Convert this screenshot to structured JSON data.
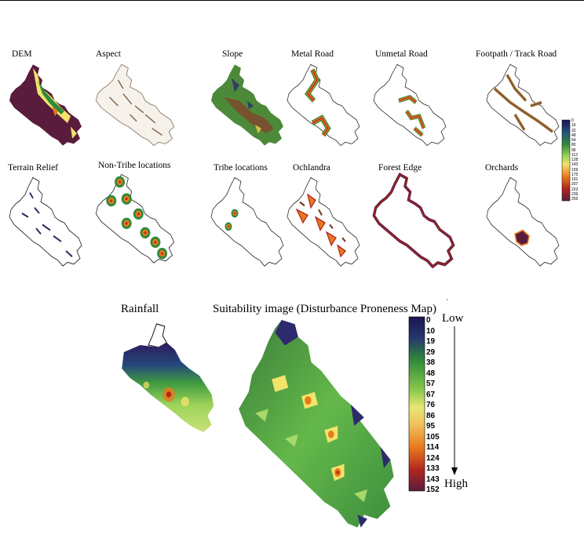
{
  "panels": [
    {
      "label": "DEM"
    },
    {
      "label": "Aspect"
    },
    {
      "label": "Slope"
    },
    {
      "label": "Metal Road"
    },
    {
      "label": "Unmetal Road"
    },
    {
      "label": "Footpath / Track Road"
    },
    {
      "label": "Terrain Relief"
    },
    {
      "label": "Non-Tribe locations"
    },
    {
      "label": "Tribe locations"
    },
    {
      "label": "Ochlandra"
    },
    {
      "label": "Forest Edge"
    },
    {
      "label": "Orchards"
    }
  ],
  "rainfall_label": "Rainfall",
  "suitability_title": "Suitability image (Disturbance Proneness Map)",
  "mark": "´",
  "small_legend": {
    "ticks": [
      "0",
      "16",
      "32",
      "48",
      "64",
      "80",
      "96",
      "112",
      "128",
      "143",
      "159",
      "175",
      "191",
      "207",
      "223",
      "239",
      "255"
    ]
  },
  "big_legend": {
    "ticks": [
      "0",
      "10",
      "19",
      "29",
      "38",
      "48",
      "57",
      "67",
      "76",
      "86",
      "95",
      "105",
      "114",
      "124",
      "133",
      "143",
      "152"
    ],
    "low_label": "Low",
    "high_label": "High"
  },
  "colors": {
    "low": "#2d1a5e",
    "mid_green": "#2f8a3a",
    "light_green": "#9fd45a",
    "yellow": "#f2e36a",
    "orange": "#e8791d",
    "red": "#b0261f",
    "high": "#5a1c3c"
  }
}
